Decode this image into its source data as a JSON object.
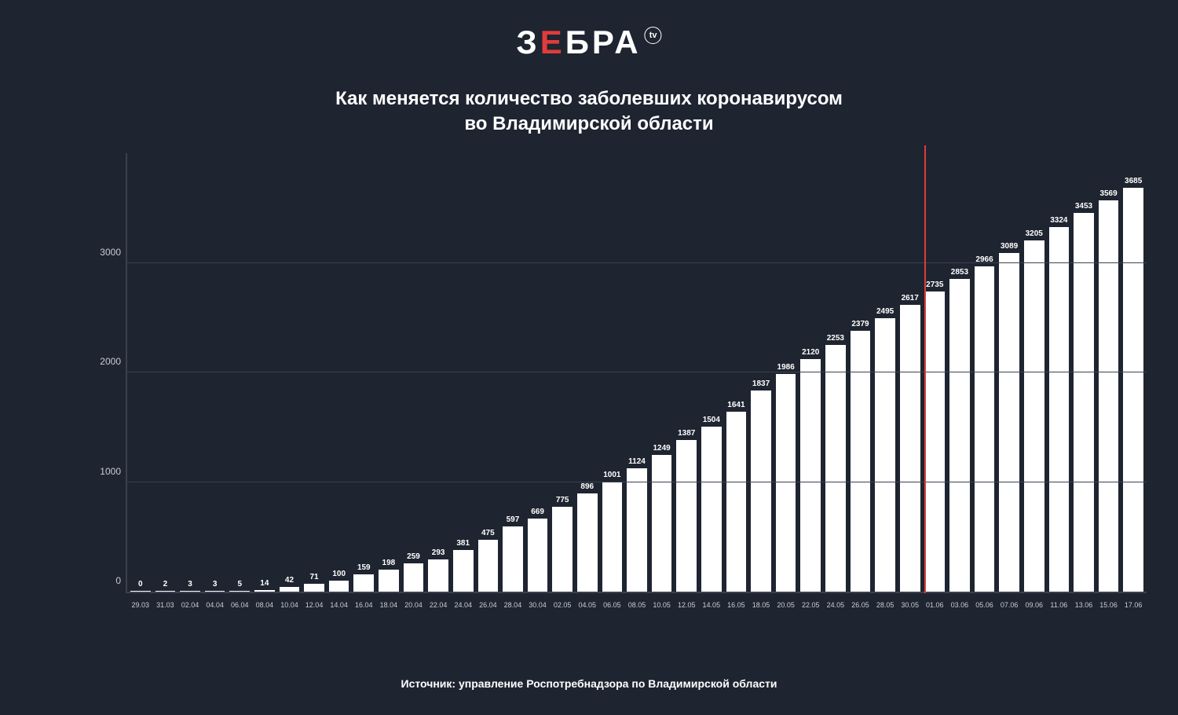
{
  "logo": {
    "text_parts": [
      "З",
      "Е",
      "БРА"
    ],
    "red_index": 1,
    "badge": "tv"
  },
  "title": {
    "line1": "Как меняется количество заболевших коронавирусом",
    "line2": "во Владимирской области"
  },
  "source": "Источник: управление Роспотребнадзора по Владимирской области",
  "chart": {
    "type": "bar",
    "background_color": "#1e2430",
    "bar_color": "#ffffff",
    "axis_color": "#3a414f",
    "grid_color": "#3a414f",
    "text_color": "#ffffff",
    "tick_color": "#c9ccd3",
    "marker_color": "#e03c3c",
    "ylim": [
      0,
      4000
    ],
    "yticks": [
      0,
      1000,
      2000,
      3000
    ],
    "value_fontsize": 10,
    "xlabel_fontsize": 9,
    "ytick_fontsize": 12,
    "marker_after_index": 31,
    "categories": [
      "29.03",
      "31.03",
      "02.04",
      "04.04",
      "06.04",
      "08.04",
      "10.04",
      "12.04",
      "14.04",
      "16.04",
      "18.04",
      "20.04",
      "22.04",
      "24.04",
      "26.04",
      "28.04",
      "30.04",
      "02.05",
      "04.05",
      "06.05",
      "08.05",
      "10.05",
      "12.05",
      "14.05",
      "16.05",
      "18.05",
      "20.05",
      "22.05",
      "24.05",
      "26.05",
      "28.05",
      "30.05",
      "01.06",
      "03.06",
      "05.06",
      "07.06",
      "09.06",
      "11.06",
      "13.06",
      "15.06",
      "17.06"
    ],
    "values": [
      0,
      2,
      3,
      3,
      5,
      14,
      42,
      71,
      100,
      159,
      198,
      259,
      293,
      381,
      475,
      597,
      669,
      775,
      896,
      1001,
      1124,
      1249,
      1387,
      1504,
      1641,
      1837,
      1986,
      2120,
      2253,
      2379,
      2495,
      2617,
      2735,
      2853,
      2966,
      3089,
      3205,
      3324,
      3453,
      3569,
      3685
    ]
  }
}
